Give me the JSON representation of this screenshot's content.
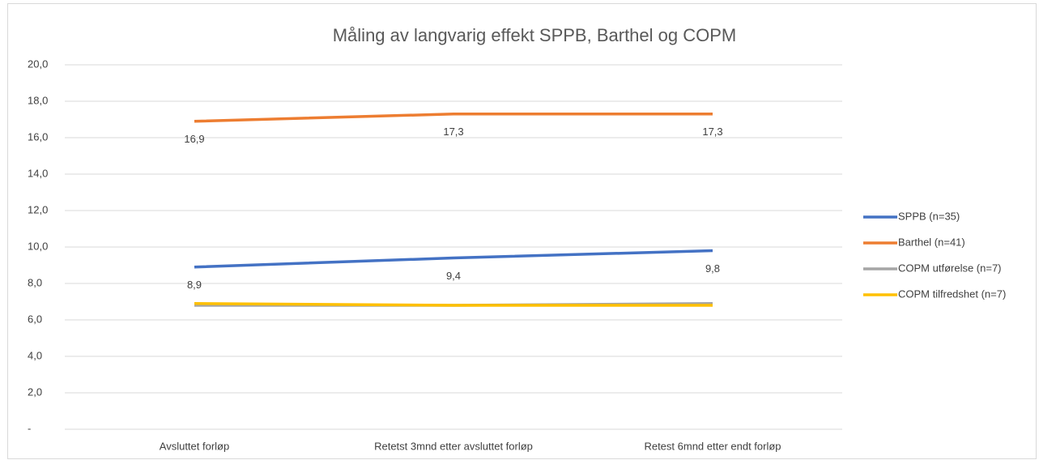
{
  "chart_data": {
    "type": "line",
    "title": "Måling av langvarig effekt SPPB, Barthel og COPM",
    "categories": [
      "Avsluttet forløp",
      "Retetst 3mnd etter avsluttet forløp",
      "Retest 6mnd etter endt forløp"
    ],
    "series": [
      {
        "name": "SPPB (n=35)",
        "color": "#4472c4",
        "values": [
          8.9,
          9.4,
          9.8
        ],
        "value_labels": [
          "8,9",
          "9,4",
          "9,8"
        ]
      },
      {
        "name": "Barthel (n=41)",
        "color": "#ed7d31",
        "values": [
          16.9,
          17.3,
          17.3
        ],
        "value_labels": [
          "16,9",
          "17,3",
          "17,3"
        ]
      },
      {
        "name": "COPM utførelse (n=7)",
        "color": "#a5a5a5",
        "values": [
          6.8,
          6.8,
          6.9
        ]
      },
      {
        "name": "COPM tilfredshet (n=7)",
        "color": "#ffc000",
        "values": [
          6.9,
          6.8,
          6.8
        ]
      }
    ],
    "ylim": [
      0,
      20
    ],
    "yticks": [
      {
        "value": 0,
        "label": "-"
      },
      {
        "value": 2,
        "label": "2,0"
      },
      {
        "value": 4,
        "label": "4,0"
      },
      {
        "value": 6,
        "label": "6,0"
      },
      {
        "value": 8,
        "label": "8,0"
      },
      {
        "value": 10,
        "label": "10,0"
      },
      {
        "value": 12,
        "label": "12,0"
      },
      {
        "value": 14,
        "label": "14,0"
      },
      {
        "value": 16,
        "label": "16,0"
      },
      {
        "value": 18,
        "label": "18,0"
      },
      {
        "value": 20,
        "label": "20,0"
      }
    ],
    "grid": true,
    "legend": "right"
  }
}
